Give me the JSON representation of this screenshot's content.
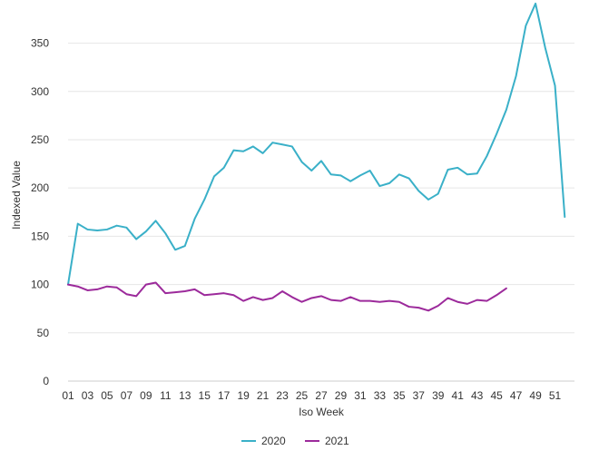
{
  "chart_data": {
    "type": "line",
    "title": "",
    "xlabel": "Iso Week",
    "ylabel": "Indexed Value",
    "x": [
      1,
      2,
      3,
      4,
      5,
      6,
      7,
      8,
      9,
      10,
      11,
      12,
      13,
      14,
      15,
      16,
      17,
      18,
      19,
      20,
      21,
      22,
      23,
      24,
      25,
      26,
      27,
      28,
      29,
      30,
      31,
      32,
      33,
      34,
      35,
      36,
      37,
      38,
      39,
      40,
      41,
      42,
      43,
      44,
      45,
      46,
      47,
      48,
      49,
      50,
      51,
      52
    ],
    "xticks": [
      "01",
      "03",
      "05",
      "07",
      "09",
      "11",
      "13",
      "15",
      "17",
      "19",
      "21",
      "23",
      "25",
      "27",
      "29",
      "31",
      "33",
      "35",
      "37",
      "39",
      "41",
      "43",
      "45",
      "47",
      "49",
      "51"
    ],
    "xlim": [
      1,
      53
    ],
    "ylim": [
      0,
      390
    ],
    "yticks": [
      0,
      50,
      100,
      150,
      200,
      250,
      300,
      350
    ],
    "grid": true,
    "legend": "bottom-center",
    "series": [
      {
        "name": "2020",
        "color": "#3ab0c8",
        "values": [
          100,
          163,
          157,
          156,
          157,
          161,
          159,
          147,
          155,
          166,
          153,
          136,
          140,
          168,
          188,
          212,
          221,
          239,
          238,
          243,
          236,
          247,
          245,
          243,
          227,
          218,
          228,
          214,
          213,
          207,
          213,
          218,
          202,
          205,
          214,
          210,
          197,
          188,
          194,
          219,
          221,
          214,
          215,
          233,
          256,
          281,
          316,
          368,
          391,
          345,
          306,
          170
        ]
      },
      {
        "name": "2021",
        "color": "#9c2a9b",
        "values": [
          100,
          98,
          94,
          95,
          98,
          97,
          90,
          88,
          100,
          102,
          91,
          92,
          93,
          95,
          89,
          90,
          91,
          89,
          83,
          87,
          84,
          86,
          93,
          87,
          82,
          86,
          88,
          84,
          83,
          87,
          83,
          83,
          82,
          83,
          82,
          77,
          76,
          73,
          78,
          86,
          82,
          80,
          84,
          83,
          89,
          96,
          null,
          null,
          null,
          null,
          null,
          null
        ]
      }
    ]
  }
}
